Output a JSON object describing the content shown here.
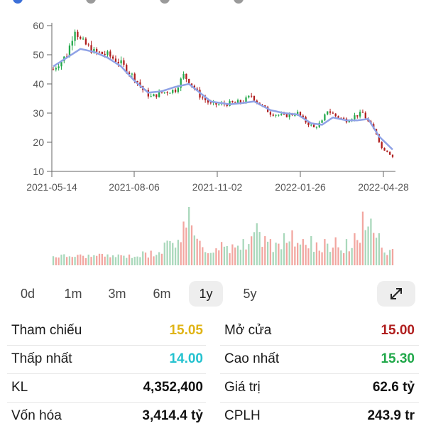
{
  "chart_data": {
    "type": "candlestick",
    "yticks": [
      10,
      20,
      30,
      40,
      50,
      60
    ],
    "ylim": [
      10,
      60
    ],
    "xticks": [
      "2021-05-14",
      "2021-08-06",
      "2021-11-02",
      "2022-01-26",
      "2022-04-28"
    ],
    "price_points": [
      [
        0,
        45
      ],
      [
        5,
        50
      ],
      [
        8,
        59
      ],
      [
        10,
        55
      ],
      [
        15,
        51
      ],
      [
        20,
        50
      ],
      [
        25,
        47
      ],
      [
        30,
        42
      ],
      [
        33,
        38
      ],
      [
        36,
        35.5
      ],
      [
        40,
        37
      ],
      [
        45,
        38
      ],
      [
        48,
        43
      ],
      [
        50,
        41
      ],
      [
        54,
        36
      ],
      [
        58,
        33
      ],
      [
        62,
        33
      ],
      [
        67,
        33.5
      ],
      [
        70,
        34
      ],
      [
        73,
        36
      ],
      [
        76,
        33
      ],
      [
        80,
        30
      ],
      [
        85,
        29
      ],
      [
        90,
        30
      ],
      [
        93,
        27
      ],
      [
        96,
        25
      ],
      [
        99,
        27
      ],
      [
        101,
        31
      ],
      [
        104,
        29
      ],
      [
        108,
        27.5
      ],
      [
        111,
        29
      ],
      [
        114,
        30
      ],
      [
        116,
        27
      ],
      [
        119,
        23
      ],
      [
        121,
        18
      ],
      [
        123,
        17
      ],
      [
        125,
        15
      ]
    ],
    "ma_points": [
      [
        0,
        46
      ],
      [
        5,
        49
      ],
      [
        10,
        52
      ],
      [
        15,
        51
      ],
      [
        20,
        49
      ],
      [
        25,
        46
      ],
      [
        30,
        41
      ],
      [
        35,
        37
      ],
      [
        40,
        37.5
      ],
      [
        45,
        39
      ],
      [
        50,
        40
      ],
      [
        54,
        37
      ],
      [
        58,
        34
      ],
      [
        65,
        33
      ],
      [
        70,
        33.5
      ],
      [
        74,
        34
      ],
      [
        80,
        31
      ],
      [
        85,
        30
      ],
      [
        90,
        29.5
      ],
      [
        95,
        26.5
      ],
      [
        99,
        26
      ],
      [
        103,
        28.5
      ],
      [
        108,
        27.5
      ],
      [
        112,
        27.5
      ],
      [
        116,
        28
      ],
      [
        120,
        22
      ],
      [
        125,
        17.5
      ]
    ],
    "volume_peaks": [
      [
        36,
        0.25
      ],
      [
        48,
        0.75
      ],
      [
        50,
        1.0
      ],
      [
        54,
        0.42
      ],
      [
        62,
        0.4
      ],
      [
        70,
        0.45
      ],
      [
        75,
        0.72
      ],
      [
        80,
        0.45
      ],
      [
        85,
        0.55
      ],
      [
        88,
        0.6
      ],
      [
        92,
        0.45
      ],
      [
        95,
        0.5
      ],
      [
        100,
        0.45
      ],
      [
        104,
        0.48
      ],
      [
        108,
        0.45
      ],
      [
        111,
        0.55
      ],
      [
        114,
        0.92
      ],
      [
        117,
        0.8
      ],
      [
        120,
        0.55
      ],
      [
        125,
        0.28
      ]
    ]
  },
  "ranges": [
    {
      "label": "0d",
      "active": false
    },
    {
      "label": "1m",
      "active": false
    },
    {
      "label": "3m",
      "active": false
    },
    {
      "label": "6m",
      "active": false
    },
    {
      "label": "1y",
      "active": true
    },
    {
      "label": "5y",
      "active": false
    }
  ],
  "expand_icon": "expand-diagonal-arrows-icon",
  "stats": {
    "rows": [
      [
        {
          "label": "Tham chiếu",
          "value": "15.05",
          "color": "#e0b416"
        },
        {
          "label": "Mở cửa",
          "value": "15.00",
          "color": "#b01e1e"
        }
      ],
      [
        {
          "label": "Thấp nhất",
          "value": "14.00",
          "color": "#24c2cf"
        },
        {
          "label": "Cao nhất",
          "value": "15.30",
          "color": "#21a84a"
        }
      ],
      [
        {
          "label": "KL",
          "value": "4,352,400",
          "color": "#111111"
        },
        {
          "label": "Giá trị",
          "value": "62.6 tỷ",
          "color": "#111111"
        }
      ],
      [
        {
          "label": "Vốn hóa",
          "value": "3,414.4 tỷ",
          "color": "#111111"
        },
        {
          "label": "CPLH",
          "value": "243.9 tr",
          "color": "#111111"
        }
      ]
    ]
  },
  "colors": {
    "up": "#21a84a",
    "down": "#b01e1e",
    "ma": "#8fa2e6",
    "vol_up": "#a9d8bb",
    "vol_down": "#f2a6a0",
    "text": "#111111"
  }
}
